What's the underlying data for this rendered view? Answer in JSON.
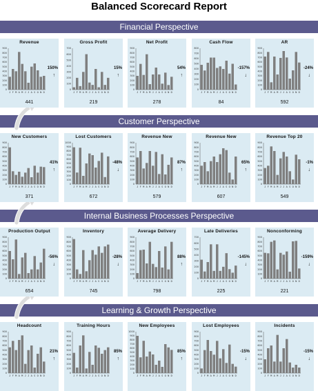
{
  "title": "Balanced Scorecard Report",
  "bar_color": "#7f7f7f",
  "panel_bg": "#dbebf3",
  "section_color": "#5b5a8d",
  "months": [
    "J",
    "F",
    "M",
    "A",
    "M",
    "J",
    "J",
    "A",
    "S",
    "O",
    "N",
    "D"
  ],
  "sections": [
    {
      "label": "Financial Perspective"
    },
    {
      "label": "Customer Perspective"
    },
    {
      "label": "Internal Business Processes Perspective"
    },
    {
      "label": "Learning & Growth Perspective"
    }
  ],
  "chart_data": [
    {
      "type": "bar",
      "title": "Revenue",
      "value": "441",
      "change": "150%",
      "direction": "up",
      "ylim": [
        0,
        900
      ],
      "yticks": [
        "0",
        "100",
        "200",
        "300",
        "400",
        "500",
        "600",
        "700",
        "800",
        "900"
      ],
      "categories": [
        "J",
        "F",
        "M",
        "A",
        "M",
        "J",
        "J",
        "A",
        "S",
        "O",
        "N",
        "D"
      ],
      "values": [
        280,
        450,
        400,
        820,
        560,
        400,
        150,
        500,
        570,
        420,
        280,
        300
      ]
    },
    {
      "type": "bar",
      "title": "Gross Profit",
      "value": "219",
      "change": "15%",
      "direction": "up",
      "ylim": [
        0,
        700
      ],
      "yticks": [
        "0",
        "100",
        "200",
        "300",
        "400",
        "500",
        "600",
        "700"
      ],
      "categories": [
        "J",
        "F",
        "M",
        "A",
        "M",
        "J",
        "J",
        "A",
        "S",
        "O",
        "N",
        "D"
      ],
      "values": [
        40,
        200,
        60,
        300,
        600,
        120,
        80,
        350,
        40,
        300,
        80,
        200
      ]
    },
    {
      "type": "bar",
      "title": "Net Profit",
      "value": "278",
      "change": "54%",
      "direction": "up",
      "ylim": [
        0,
        900
      ],
      "yticks": [
        "0",
        "100",
        "200",
        "300",
        "400",
        "500",
        "600",
        "700",
        "800",
        "900"
      ],
      "categories": [
        "J",
        "F",
        "M",
        "A",
        "M",
        "J",
        "J",
        "A",
        "S",
        "O",
        "N",
        "D"
      ],
      "values": [
        300,
        560,
        320,
        770,
        120,
        330,
        480,
        330,
        130,
        370,
        100,
        280
      ]
    },
    {
      "type": "bar",
      "title": "Cash Flow",
      "value": "84",
      "change": "-157%",
      "direction": "down",
      "ylim": [
        0,
        800
      ],
      "yticks": [
        "0",
        "100",
        "200",
        "300",
        "400",
        "500",
        "600",
        "700",
        "800"
      ],
      "categories": [
        "J",
        "F",
        "M",
        "A",
        "M",
        "J",
        "J",
        "A",
        "S",
        "O",
        "N",
        "D"
      ],
      "values": [
        480,
        370,
        520,
        620,
        620,
        420,
        450,
        400,
        560,
        310,
        500,
        100
      ]
    },
    {
      "type": "bar",
      "title": "AR",
      "value": "592",
      "change": "-24%",
      "direction": "down",
      "ylim": [
        0,
        900
      ],
      "yticks": [
        "0",
        "100",
        "200",
        "300",
        "400",
        "500",
        "600",
        "700",
        "800",
        "900"
      ],
      "categories": [
        "J",
        "F",
        "M",
        "A",
        "M",
        "J",
        "J",
        "A",
        "S",
        "O",
        "N",
        "D"
      ],
      "values": [
        720,
        820,
        160,
        720,
        330,
        690,
        840,
        700,
        240,
        420,
        820,
        590
      ]
    },
    {
      "type": "bar",
      "title": "New Customers",
      "value": "371",
      "change": "41%",
      "direction": "up",
      "ylim": [
        0,
        900
      ],
      "yticks": [
        "0",
        "100",
        "200",
        "300",
        "400",
        "500",
        "600",
        "700",
        "800",
        "900"
      ],
      "categories": [
        "J",
        "F",
        "M",
        "A",
        "M",
        "J",
        "J",
        "A",
        "S",
        "O",
        "N",
        "D"
      ],
      "values": [
        800,
        280,
        200,
        270,
        160,
        250,
        350,
        150,
        400,
        250,
        380,
        370
      ]
    },
    {
      "type": "bar",
      "title": "Lost Customers",
      "value": "672",
      "change": "-48%",
      "direction": "down",
      "ylim": [
        0,
        1000
      ],
      "yticks": [
        "0",
        "100",
        "200",
        "300",
        "400",
        "500",
        "600",
        "700",
        "800",
        "900",
        "1000"
      ],
      "categories": [
        "J",
        "F",
        "M",
        "A",
        "M",
        "J",
        "J",
        "A",
        "S",
        "O",
        "N",
        "D"
      ],
      "values": [
        890,
        280,
        880,
        200,
        500,
        740,
        700,
        400,
        560,
        760,
        170,
        670
      ]
    },
    {
      "type": "bar",
      "title": "Revenue New",
      "value": "579",
      "change": "87%",
      "direction": "up",
      "ylim": [
        0,
        900
      ],
      "yticks": [
        "0",
        "100",
        "200",
        "300",
        "400",
        "500",
        "600",
        "700",
        "800",
        "900"
      ],
      "categories": [
        "J",
        "F",
        "M",
        "A",
        "M",
        "J",
        "J",
        "A",
        "S",
        "O",
        "N",
        "D"
      ],
      "values": [
        580,
        720,
        340,
        460,
        720,
        400,
        700,
        220,
        650,
        210,
        420,
        580
      ]
    },
    {
      "type": "bar",
      "title": "Revenue New",
      "value": "607",
      "change": "65%",
      "direction": "up",
      "ylim": [
        0,
        900
      ],
      "yticks": [
        "0",
        "100",
        "200",
        "300",
        "400",
        "500",
        "600",
        "700",
        "800",
        "900"
      ],
      "categories": [
        "J",
        "F",
        "M",
        "A",
        "M",
        "J",
        "J",
        "A",
        "S",
        "O",
        "N",
        "D"
      ],
      "values": [
        400,
        480,
        280,
        500,
        600,
        480,
        650,
        780,
        740,
        250,
        100,
        600
      ]
    },
    {
      "type": "bar",
      "title": "Revenue Top 20",
      "value": "549",
      "change": "-1%",
      "direction": "down",
      "ylim": [
        0,
        900
      ],
      "yticks": [
        "0",
        "100",
        "200",
        "300",
        "400",
        "500",
        "600",
        "700",
        "800",
        "900"
      ],
      "categories": [
        "J",
        "F",
        "M",
        "A",
        "M",
        "J",
        "J",
        "A",
        "S",
        "O",
        "N",
        "D"
      ],
      "values": [
        350,
        400,
        820,
        720,
        200,
        560,
        700,
        600,
        280,
        100,
        640,
        540
      ]
    },
    {
      "type": "bar",
      "title": "Production Output",
      "value": "654",
      "change": "-56%",
      "direction": "down",
      "ylim": [
        0,
        900
      ],
      "yticks": [
        "0",
        "100",
        "200",
        "300",
        "400",
        "500",
        "600",
        "700",
        "800",
        "900"
      ],
      "categories": [
        "J",
        "F",
        "M",
        "A",
        "M",
        "J",
        "J",
        "A",
        "S",
        "O",
        "N",
        "D"
      ],
      "values": [
        600,
        420,
        850,
        100,
        460,
        560,
        120,
        200,
        490,
        200,
        350,
        650
      ]
    },
    {
      "type": "bar",
      "title": "Inventory",
      "value": "745",
      "change": "-28%",
      "direction": "down",
      "ylim": [
        0,
        900
      ],
      "yticks": [
        "0",
        "100",
        "200",
        "300",
        "400",
        "500",
        "600",
        "700",
        "800",
        "900"
      ],
      "categories": [
        "J",
        "F",
        "M",
        "A",
        "M",
        "J",
        "J",
        "A",
        "S",
        "O",
        "N",
        "D"
      ],
      "values": [
        860,
        200,
        100,
        620,
        160,
        400,
        620,
        520,
        700,
        560,
        700,
        740
      ]
    },
    {
      "type": "bar",
      "title": "Average Delivery",
      "value": "798",
      "change": "88%",
      "direction": "up",
      "ylim": [
        0,
        900
      ],
      "yticks": [
        "0",
        "100",
        "200",
        "300",
        "400",
        "500",
        "600",
        "700",
        "800",
        "900"
      ],
      "categories": [
        "J",
        "F",
        "M",
        "A",
        "M",
        "J",
        "J",
        "A",
        "S",
        "O",
        "N",
        "D"
      ],
      "values": [
        120,
        620,
        630,
        330,
        800,
        320,
        250,
        600,
        240,
        700,
        200,
        800
      ]
    },
    {
      "type": "bar",
      "title": "Late Deliveries",
      "value": "225",
      "change": "-145%",
      "direction": "down",
      "ylim": [
        0,
        700
      ],
      "yticks": [
        "0",
        "100",
        "200",
        "300",
        "400",
        "500",
        "600",
        "700"
      ],
      "categories": [
        "J",
        "F",
        "M",
        "A",
        "M",
        "J",
        "J",
        "A",
        "S",
        "O",
        "N",
        "D"
      ],
      "values": [
        320,
        120,
        280,
        580,
        130,
        580,
        130,
        200,
        430,
        160,
        100,
        220
      ]
    },
    {
      "type": "bar",
      "title": "Nonconforming",
      "value": "221",
      "change": "-159%",
      "direction": "down",
      "ylim": [
        0,
        900
      ],
      "yticks": [
        "0",
        "100",
        "200",
        "300",
        "400",
        "500",
        "600",
        "700",
        "800",
        "900"
      ],
      "categories": [
        "J",
        "F",
        "M",
        "A",
        "M",
        "J",
        "J",
        "A",
        "S",
        "O",
        "N",
        "D"
      ],
      "values": [
        560,
        550,
        800,
        830,
        200,
        560,
        520,
        590,
        150,
        810,
        820,
        220
      ]
    },
    {
      "type": "bar",
      "title": "Headcount",
      "value": "",
      "change": "21%",
      "direction": "up",
      "ylim": [
        0,
        900
      ],
      "yticks": [
        "0",
        "100",
        "200",
        "300",
        "400",
        "500",
        "600",
        "700",
        "800",
        "900"
      ],
      "categories": [
        "J",
        "F",
        "M",
        "A",
        "M",
        "J",
        "J",
        "A",
        "S",
        "O",
        "N",
        "D"
      ],
      "values": [
        560,
        700,
        500,
        720,
        820,
        200,
        500,
        600,
        120,
        420,
        560,
        250
      ]
    },
    {
      "type": "bar",
      "title": "Training Hours",
      "value": "",
      "change": "85%",
      "direction": "up",
      "ylim": [
        0,
        900
      ],
      "yticks": [
        "0",
        "100",
        "200",
        "300",
        "400",
        "500",
        "600",
        "700",
        "800",
        "900"
      ],
      "categories": [
        "J",
        "F",
        "M",
        "A",
        "M",
        "J",
        "J",
        "A",
        "S",
        "O",
        "N",
        "D"
      ],
      "values": [
        440,
        120,
        600,
        820,
        100,
        460,
        180,
        600,
        550,
        420,
        500,
        560
      ]
    },
    {
      "type": "bar",
      "title": "New Employees",
      "value": "",
      "change": "85%",
      "direction": "up",
      "ylim": [
        0,
        1000
      ],
      "yticks": [
        "0",
        "100",
        "200",
        "300",
        "400",
        "500",
        "600",
        "700",
        "800",
        "900",
        "1000"
      ],
      "categories": [
        "J",
        "F",
        "M",
        "A",
        "M",
        "J",
        "J",
        "A",
        "S",
        "O",
        "N",
        "D"
      ],
      "values": [
        900,
        380,
        780,
        400,
        520,
        450,
        200,
        300,
        150,
        700,
        620,
        560
      ]
    },
    {
      "type": "bar",
      "title": "Lost Employees",
      "value": "",
      "change": "-15%",
      "direction": "down",
      "ylim": [
        0,
        900
      ],
      "yticks": [
        "0",
        "100",
        "200",
        "300",
        "400",
        "500",
        "600",
        "700",
        "800",
        "900"
      ],
      "categories": [
        "J",
        "F",
        "M",
        "A",
        "M",
        "J",
        "J",
        "A",
        "S",
        "O",
        "N",
        "D"
      ],
      "values": [
        100,
        500,
        720,
        480,
        400,
        700,
        320,
        520,
        220,
        620,
        200,
        140
      ]
    },
    {
      "type": "bar",
      "title": "Incidents",
      "value": "",
      "change": "-15%",
      "direction": "down",
      "ylim": [
        0,
        900
      ],
      "yticks": [
        "0",
        "100",
        "200",
        "300",
        "400",
        "500",
        "600",
        "700",
        "800",
        "900"
      ],
      "categories": [
        "J",
        "F",
        "M",
        "A",
        "M",
        "J",
        "J",
        "A",
        "S",
        "O",
        "N",
        "D"
      ],
      "values": [
        300,
        540,
        600,
        250,
        830,
        250,
        540,
        740,
        230,
        120,
        180,
        120
      ]
    }
  ]
}
